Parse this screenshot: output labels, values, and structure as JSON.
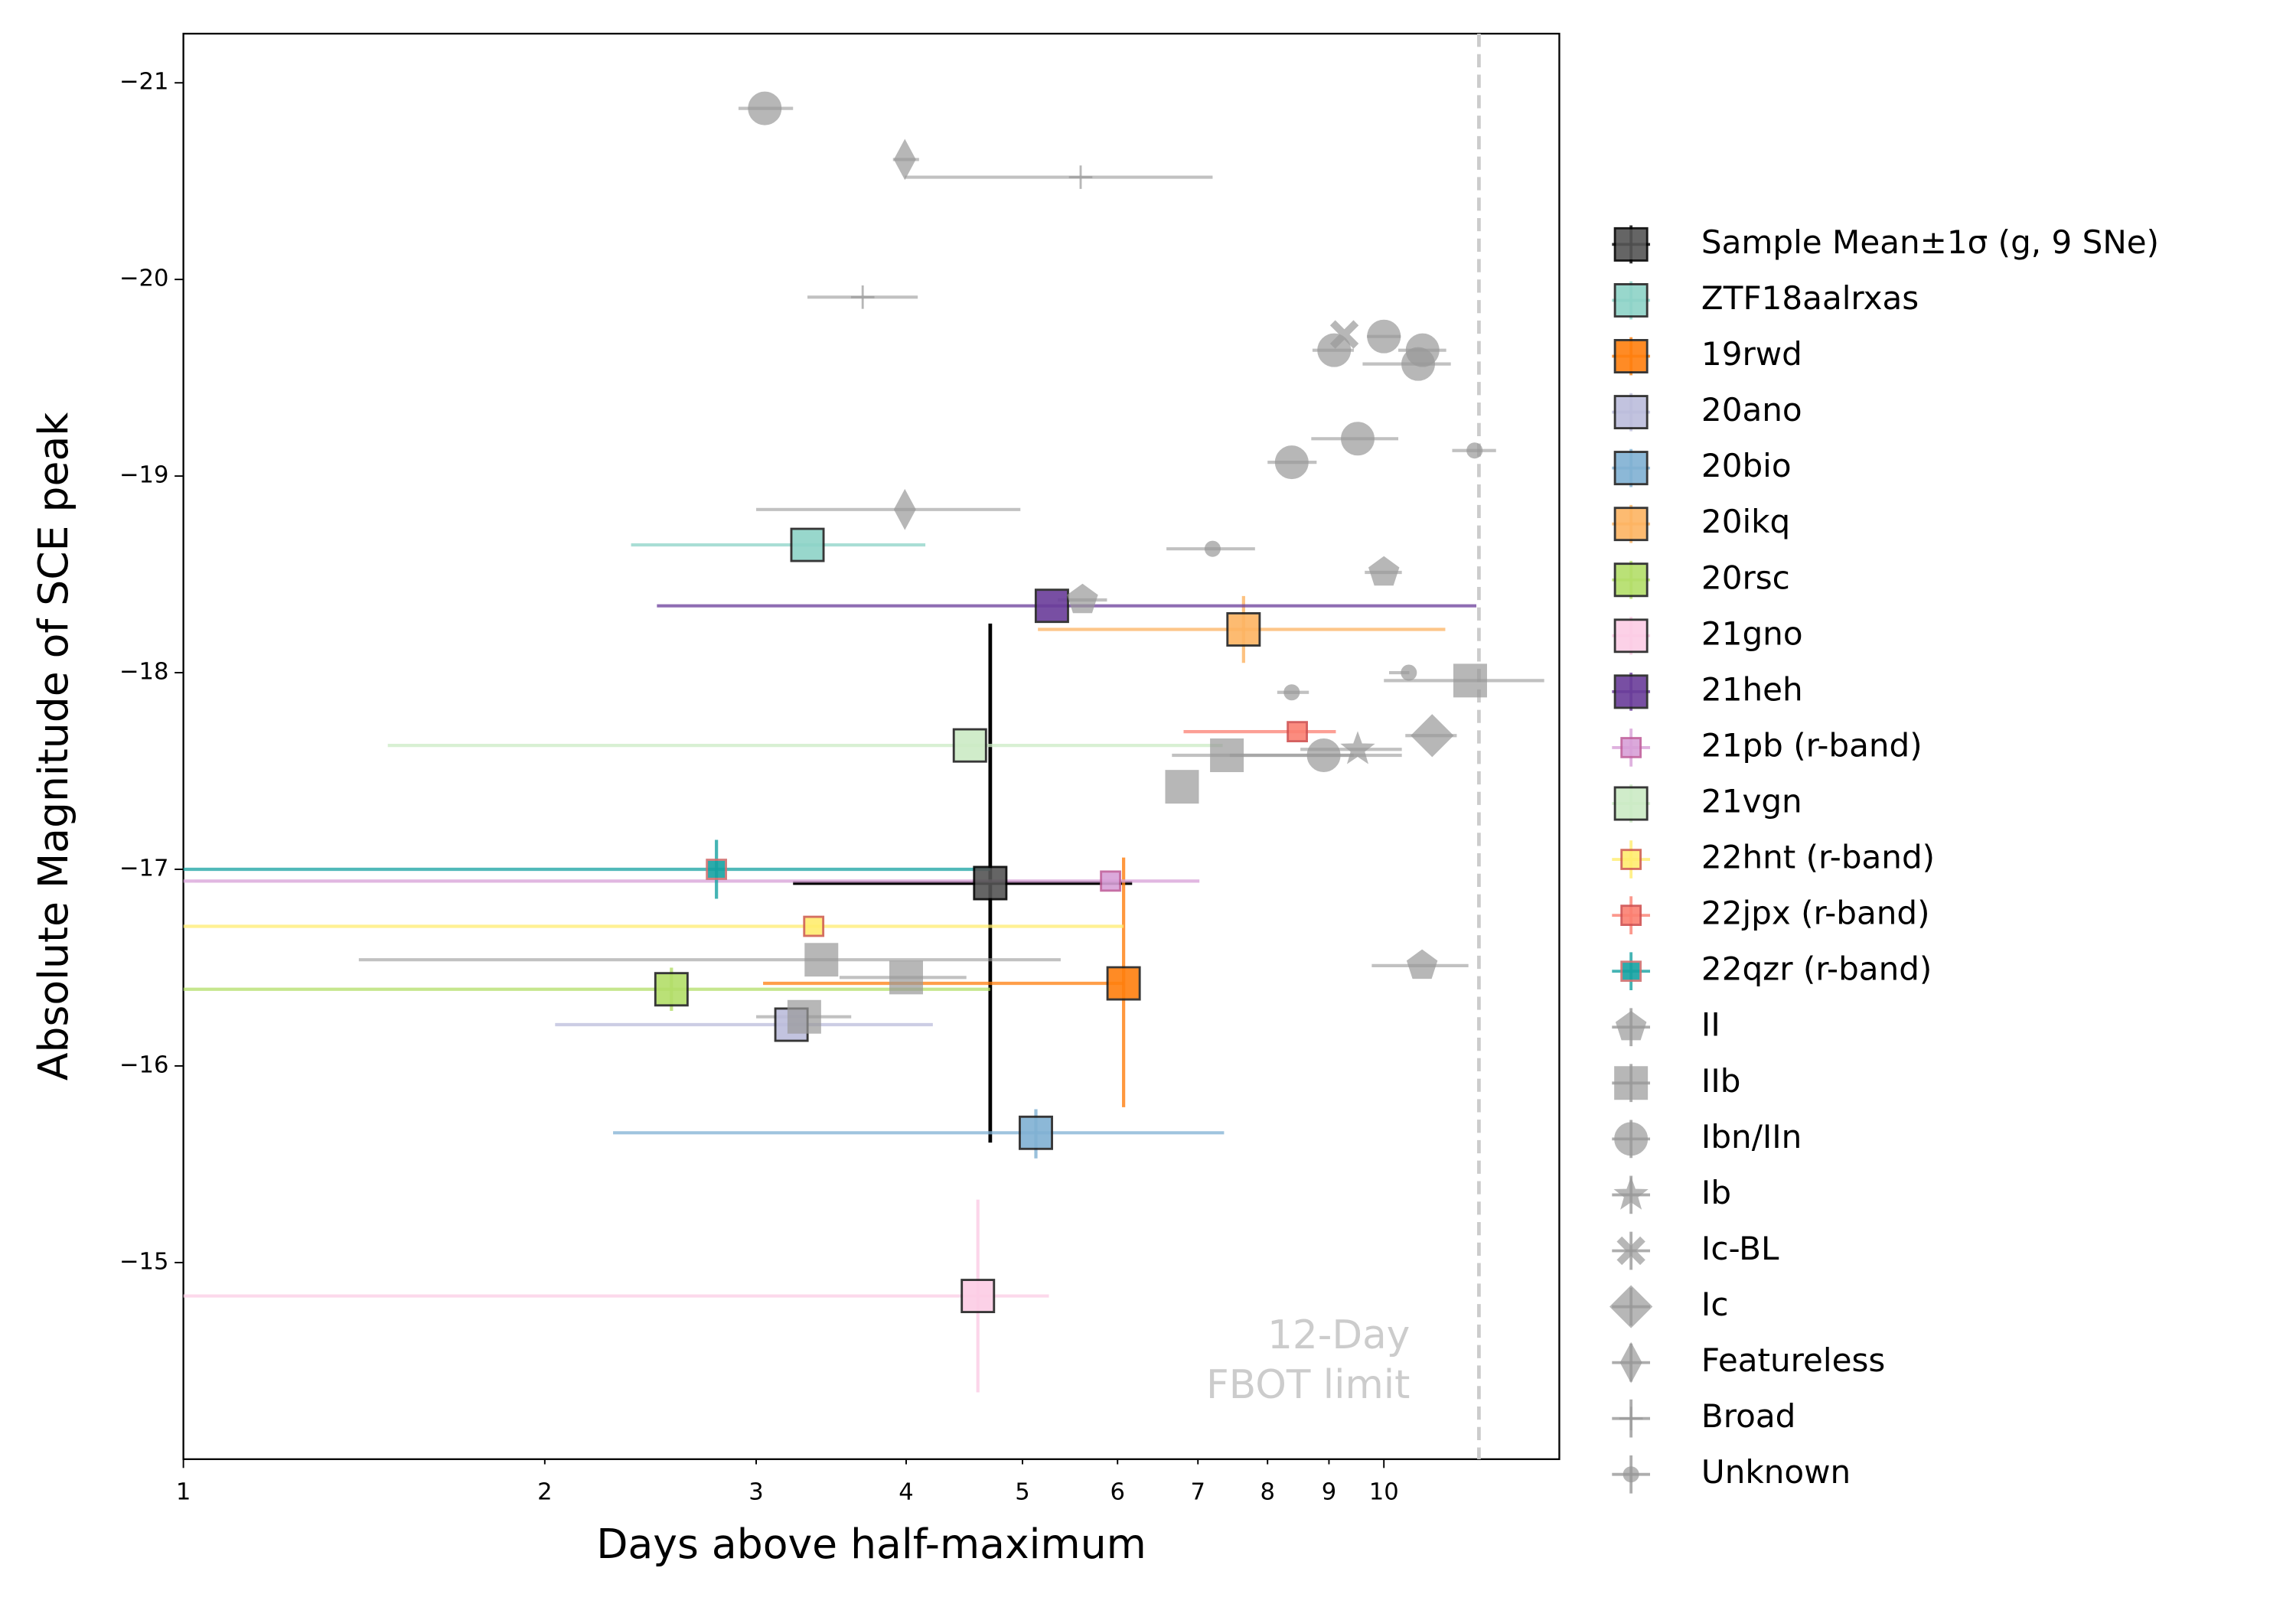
{
  "chart_data": {
    "type": "scatter",
    "xlabel": "Days above half-maximum",
    "ylabel": "Absolute Magnitude of SCE peak",
    "xscale": "log",
    "xlim": [
      1,
      14
    ],
    "xticks": [
      1,
      2,
      3,
      4,
      5,
      6,
      7,
      8,
      9,
      10
    ],
    "ylim": [
      -21.25,
      -14.0
    ],
    "y_inverted": true,
    "yticks": [
      {
        "value": -21,
        "label": "−21"
      },
      {
        "value": -20,
        "label": "−20"
      },
      {
        "value": -19,
        "label": "−19"
      },
      {
        "value": -18,
        "label": "−18"
      },
      {
        "value": -17,
        "label": "−17"
      },
      {
        "value": -16,
        "label": "−16"
      },
      {
        "value": -15,
        "label": "−15"
      }
    ],
    "vline": {
      "x": 12,
      "color": "#cccccc",
      "style": "dashed"
    },
    "annotation": [
      "12-Day",
      "FBOT limit"
    ],
    "legend": "outside right",
    "series": [
      {
        "name": "Sample Mean±1σ (g, 9 SNe)",
        "color": "#555555",
        "edge": "#000000",
        "ecolor": "#000000",
        "marker": "square",
        "x": [
          4.7
        ],
        "y": [
          -16.93
        ],
        "x_low": [
          3.22
        ],
        "x_high": [
          6.17
        ],
        "y_low": [
          -18.25
        ],
        "y_high": [
          -15.61
        ]
      },
      {
        "name": "ZTF18aalrxas",
        "color": "#8dd3c7",
        "edge": "#222222",
        "ecolor": "#8dd3c7",
        "marker": "square",
        "x": [
          3.31
        ],
        "y": [
          -18.65
        ],
        "x_low": [
          2.36
        ],
        "x_high": [
          4.15
        ]
      },
      {
        "name": "19rwd",
        "color": "#ff7f0e",
        "edge": "#222222",
        "ecolor": "#ff7f0e",
        "marker": "square",
        "x": [
          6.07
        ],
        "y": [
          -16.42
        ],
        "x_low": [
          3.04
        ],
        "x_high": [
          6.07
        ],
        "y_low": [
          -17.06
        ],
        "y_high": [
          -15.79
        ]
      },
      {
        "name": "20ano",
        "color": "#bcbddc",
        "edge": "#222222",
        "ecolor": "#bcbddc",
        "marker": "square",
        "x": [
          3.21
        ],
        "y": [
          -16.21
        ],
        "x_low": [
          2.04
        ],
        "x_high": [
          4.21
        ]
      },
      {
        "name": "20bio",
        "color": "#80b1d3",
        "edge": "#222222",
        "ecolor": "#80b1d3",
        "marker": "square",
        "x": [
          5.13
        ],
        "y": [
          -15.66
        ],
        "x_low": [
          2.28
        ],
        "x_high": [
          7.36
        ],
        "y_low": [
          -15.78
        ],
        "y_high": [
          -15.53
        ]
      },
      {
        "name": "20ikq",
        "color": "#fdb462",
        "edge": "#222222",
        "ecolor": "#fdb462",
        "marker": "square",
        "x": [
          7.64
        ],
        "y": [
          -18.22
        ],
        "x_low": [
          5.15
        ],
        "x_high": [
          11.25
        ],
        "y_low": [
          -18.39
        ],
        "y_high": [
          -18.05
        ]
      },
      {
        "name": "20rsc",
        "color": "#b3de69",
        "edge": "#222222",
        "ecolor": "#b3de69",
        "marker": "square",
        "x": [
          2.55
        ],
        "y": [
          -16.39
        ],
        "x_low": [
          1
        ],
        "x_high": [
          4.7
        ],
        "y_low": [
          -16.5
        ],
        "y_high": [
          -16.28
        ]
      },
      {
        "name": "21gno",
        "color": "#fccde5",
        "edge": "#222222",
        "ecolor": "#fccde5",
        "marker": "square",
        "x": [
          4.59
        ],
        "y": [
          -14.83
        ],
        "x_low": [
          1
        ],
        "x_high": [
          5.26
        ],
        "y_low": [
          -15.32
        ],
        "y_high": [
          -14.34
        ]
      },
      {
        "name": "21heh",
        "color": "#6a3d9a",
        "edge": "#222222",
        "ecolor": "#6a3d9a",
        "marker": "square",
        "x": [
          5.29
        ],
        "y": [
          -18.34
        ],
        "x_low": [
          2.48
        ],
        "x_high": [
          11.94
        ]
      },
      {
        "name": "21pb (r-band)",
        "color": "#d8a0d8",
        "edge": "#c0609c",
        "ecolor": "#d8a0d8",
        "marker": "small_square",
        "x": [
          5.92
        ],
        "y": [
          -16.94
        ],
        "x_low": [
          1
        ],
        "x_high": [
          7.02
        ]
      },
      {
        "name": "21vgn",
        "color": "#ccebc5",
        "edge": "#222222",
        "ecolor": "#ccebc5",
        "marker": "square",
        "x": [
          4.52
        ],
        "y": [
          -17.63
        ],
        "x_low": [
          1.48
        ],
        "x_high": [
          7.34
        ]
      },
      {
        "name": "22hnt (r-band)",
        "color": "#ffed6f",
        "edge": "#d06050",
        "ecolor": "#ffed6f",
        "marker": "small_square",
        "x": [
          3.35
        ],
        "y": [
          -16.71
        ],
        "x_low": [
          1
        ],
        "x_high": [
          6.07
        ]
      },
      {
        "name": "22jpx (r-band)",
        "color": "#fb8072",
        "edge": "#d05050",
        "ecolor": "#fb8072",
        "marker": "small_square",
        "x": [
          8.47
        ],
        "y": [
          -17.7
        ],
        "x_low": [
          6.81
        ],
        "x_high": [
          9.12
        ]
      },
      {
        "name": "22qzr (r-band)",
        "color": "#17a2a2",
        "edge": "#d07070",
        "ecolor": "#17a2a2",
        "marker": "small_square",
        "x": [
          2.78
        ],
        "y": [
          -17.0
        ],
        "x_low": [
          1
        ],
        "x_high": [
          4.7
        ],
        "y_low": [
          -17.15
        ],
        "y_high": [
          -16.85
        ]
      },
      {
        "name": "II",
        "color": "#999999",
        "edge": "#999999",
        "ecolor": "#999999",
        "marker": "pentagon",
        "x": [
          5.61,
          10.0,
          10.76
        ],
        "y": [
          -18.37,
          -18.51,
          -16.51
        ],
        "x_low": [
          5.35,
          9.64,
          9.77
        ],
        "x_high": [
          5.88,
          10.35,
          11.76
        ]
      },
      {
        "name": "IIb",
        "color": "#999999",
        "edge": "#999999",
        "ecolor": "#999999",
        "marker": "square",
        "x": [
          11.8,
          7.4,
          6.79,
          3.4,
          4.0,
          3.29
        ],
        "y": [
          -17.96,
          -17.58,
          -17.42,
          -16.54,
          -16.45,
          -16.25
        ],
        "x_low": [
          10.0,
          6.66,
          null,
          1.4,
          3.52,
          3.0
        ],
        "x_high": [
          13.6,
          10.35,
          null,
          5.38,
          4.49,
          3.6
        ]
      },
      {
        "name": "Ibn/IIn",
        "color": "#999999",
        "edge": "#999999",
        "ecolor": "#999999",
        "marker": "circle",
        "x": [
          3.05,
          9.09,
          10.0,
          10.77,
          10.68,
          9.51,
          8.38,
          8.91
        ],
        "y": [
          -20.87,
          -19.64,
          -19.71,
          -19.64,
          -19.57,
          -19.19,
          -19.07,
          -17.58
        ],
        "x_low": [
          2.9,
          8.72,
          9.68,
          10.28,
          9.6,
          8.7,
          8.0,
          7.44
        ],
        "x_high": [
          3.22,
          9.44,
          10.33,
          11.27,
          11.37,
          10.28,
          8.79,
          9.44
        ]
      },
      {
        "name": "Ib",
        "color": "#999999",
        "edge": "#999999",
        "ecolor": "#999999",
        "marker": "star",
        "x": [
          9.51
        ],
        "y": [
          -17.61
        ],
        "x_low": [
          8.52
        ],
        "x_high": [
          10.35
        ]
      },
      {
        "name": "Ic-BL",
        "color": "#999999",
        "edge": "#999999",
        "ecolor": "#999999",
        "marker": "x",
        "x": [
          9.27
        ],
        "y": [
          -19.72
        ]
      },
      {
        "name": "Ic",
        "color": "#999999",
        "edge": "#999999",
        "ecolor": "#999999",
        "marker": "diamond",
        "x": [
          10.97
        ],
        "y": [
          -17.68
        ],
        "x_low": [
          10.42
        ],
        "x_high": [
          11.5
        ]
      },
      {
        "name": "Featureless",
        "color": "#999999",
        "edge": "#999999",
        "ecolor": "#999999",
        "marker": "thin_diamond",
        "x": [
          3.99,
          3.99
        ],
        "y": [
          -20.61,
          -18.83
        ],
        "x_low": [
          3.9,
          3.0
        ],
        "x_high": [
          4.1,
          4.98
        ]
      },
      {
        "name": "Broad",
        "color": "#999999",
        "edge": "#999999",
        "ecolor": "#999999",
        "marker": "plus",
        "x": [
          5.59,
          3.68
        ],
        "y": [
          -20.52,
          -19.91
        ],
        "x_low": [
          3.99,
          3.31
        ],
        "x_high": [
          7.2,
          4.09
        ]
      },
      {
        "name": "Unknown",
        "color": "#999999",
        "edge": "#999999",
        "ecolor": "#999999",
        "marker": "dot",
        "x": [
          7.2,
          11.9,
          10.49,
          8.38
        ],
        "y": [
          -18.63,
          -19.13,
          -18.0,
          -17.9
        ],
        "x_low": [
          6.59,
          11.4,
          10.1,
          8.15
        ],
        "x_high": [
          7.81,
          12.4,
          10.5,
          8.66
        ]
      }
    ]
  }
}
